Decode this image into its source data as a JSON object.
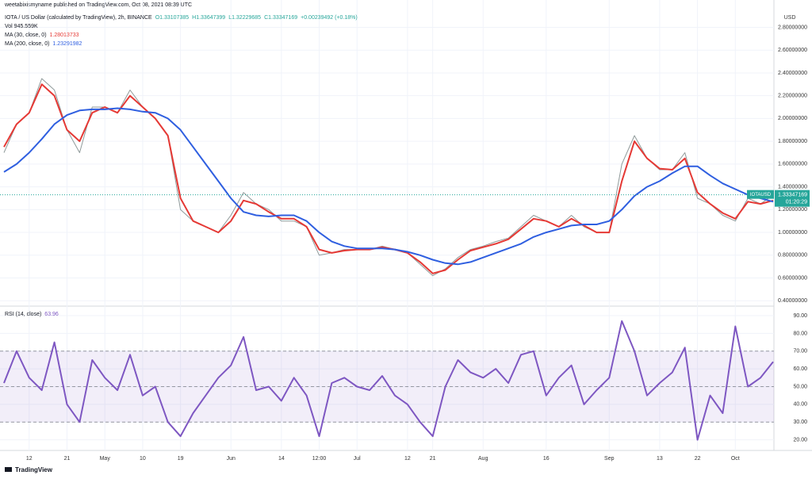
{
  "published": "weetabixismyname published on TradingView.com, Oct 08, 2021 08:39 UTC",
  "branding": "TradingView",
  "chart_data": [
    {
      "type": "line",
      "title": "IOTA / US Dollar (calculated by TradingView), 2h, BINANCE",
      "quote": [
        "O1.33107385",
        "H1.33647399",
        "L1.32229685",
        "C1.33347169",
        "+0.00239492 (+0.18%)"
      ],
      "indicators": [
        "Vol 945.559K"
      ],
      "y_unit": "USD",
      "last_value_label": "1.33347169",
      "countdown": "01:20:29",
      "categories": [
        null,
        null,
        "12",
        null,
        null,
        "21",
        null,
        null,
        "May",
        null,
        null,
        "10",
        null,
        null,
        "19",
        null,
        null,
        null,
        "Jun",
        null,
        null,
        null,
        "14",
        null,
        null,
        "12:00",
        null,
        null,
        "Jul",
        null,
        null,
        null,
        "12",
        null,
        "21",
        null,
        null,
        null,
        "Aug",
        null,
        null,
        null,
        null,
        "16",
        null,
        null,
        null,
        null,
        "Sep",
        null,
        null,
        null,
        "13",
        null,
        null,
        "22",
        null,
        null,
        "Oct",
        null,
        null,
        null
      ],
      "series": [
        {
          "name": "IOTAUSD",
          "color": "#26a69a",
          "line_color": "#8f9a9a",
          "legend": false,
          "values": [
            1.7,
            1.95,
            2.05,
            2.35,
            2.25,
            1.9,
            1.7,
            2.1,
            2.1,
            2.05,
            2.25,
            2.1,
            2.0,
            1.85,
            1.2,
            1.1,
            1.05,
            1.0,
            1.15,
            1.35,
            1.25,
            1.2,
            1.1,
            1.1,
            1.05,
            0.8,
            0.82,
            0.85,
            0.85,
            0.85,
            0.88,
            0.85,
            0.82,
            0.72,
            0.62,
            0.68,
            0.78,
            0.85,
            0.88,
            0.92,
            0.95,
            1.05,
            1.15,
            1.1,
            1.05,
            1.15,
            1.05,
            1.0,
            1.0,
            1.6,
            1.85,
            1.65,
            1.55,
            1.55,
            1.7,
            1.3,
            1.25,
            1.15,
            1.1,
            1.3,
            1.25,
            1.33
          ]
        },
        {
          "name": "MA (30, close, 0)",
          "last_label": "1.28013733",
          "color": "#e53935",
          "legend": true,
          "values": [
            1.75,
            1.95,
            2.05,
            2.3,
            2.2,
            1.9,
            1.8,
            2.05,
            2.1,
            2.05,
            2.2,
            2.1,
            2.0,
            1.85,
            1.3,
            1.1,
            1.05,
            1.0,
            1.1,
            1.28,
            1.25,
            1.18,
            1.12,
            1.12,
            1.05,
            0.85,
            0.82,
            0.84,
            0.85,
            0.85,
            0.87,
            0.85,
            0.82,
            0.74,
            0.64,
            0.67,
            0.76,
            0.84,
            0.87,
            0.9,
            0.94,
            1.03,
            1.12,
            1.1,
            1.05,
            1.12,
            1.06,
            1.0,
            1.0,
            1.45,
            1.8,
            1.65,
            1.56,
            1.55,
            1.65,
            1.35,
            1.25,
            1.17,
            1.12,
            1.27,
            1.25,
            1.28
          ]
        },
        {
          "name": "MA (200, close, 0)",
          "last_label": "1.23291982",
          "color": "#2f5fe0",
          "legend": true,
          "values": [
            1.53,
            1.6,
            1.7,
            1.82,
            1.95,
            2.03,
            2.07,
            2.08,
            2.08,
            2.09,
            2.08,
            2.06,
            2.05,
            2.0,
            1.9,
            1.75,
            1.6,
            1.45,
            1.3,
            1.18,
            1.15,
            1.14,
            1.15,
            1.15,
            1.1,
            1.0,
            0.92,
            0.88,
            0.86,
            0.86,
            0.86,
            0.85,
            0.83,
            0.8,
            0.76,
            0.73,
            0.72,
            0.74,
            0.78,
            0.82,
            0.86,
            0.9,
            0.96,
            1.0,
            1.03,
            1.06,
            1.07,
            1.07,
            1.1,
            1.2,
            1.32,
            1.4,
            1.45,
            1.52,
            1.58,
            1.58,
            1.5,
            1.43,
            1.38,
            1.33,
            1.3,
            1.27
          ]
        }
      ],
      "ylim": [
        0.36,
        3.04
      ],
      "yticks": [
        {
          "value": 0.4,
          "label": "0.40000000"
        },
        {
          "value": 0.6,
          "label": "0.60000000"
        },
        {
          "value": 0.8,
          "label": "0.80000000"
        },
        {
          "value": 1.0,
          "label": "1.00000000"
        },
        {
          "value": 1.2,
          "label": "1.20000000"
        },
        {
          "value": 1.4,
          "label": "1.40000000"
        },
        {
          "value": 1.6,
          "label": "1.60000000"
        },
        {
          "value": 1.8,
          "label": "1.80000000"
        },
        {
          "value": 2.0,
          "label": "2.00000000"
        },
        {
          "value": 2.2,
          "label": "2.20000000"
        },
        {
          "value": 2.4,
          "label": "2.40000000"
        },
        {
          "value": 2.6,
          "label": "2.60000000"
        },
        {
          "value": 2.8,
          "label": "2.80000000"
        }
      ],
      "grid": true
    },
    {
      "type": "line",
      "series": [
        {
          "name": "RSI (14, close)",
          "last_label": "63.96",
          "color": "#7e57c2",
          "legend": true,
          "values": [
            52,
            70,
            55,
            48,
            75,
            40,
            30,
            65,
            55,
            48,
            68,
            45,
            50,
            30,
            22,
            35,
            45,
            55,
            62,
            78,
            48,
            50,
            42,
            55,
            45,
            22,
            52,
            55,
            50,
            48,
            56,
            45,
            40,
            30,
            22,
            50,
            65,
            58,
            55,
            60,
            52,
            68,
            70,
            45,
            55,
            62,
            40,
            48,
            55,
            87,
            70,
            45,
            52,
            58,
            72,
            20,
            45,
            35,
            84,
            50,
            55,
            64
          ]
        }
      ],
      "levels": [
        70,
        50,
        30
      ],
      "band_color": "#7e57c2",
      "ylim": [
        14,
        94.5
      ],
      "yticks": [
        {
          "value": 20,
          "label": "20.00"
        },
        {
          "value": 30,
          "label": "30.00"
        },
        {
          "value": 40,
          "label": "40.00"
        },
        {
          "value": 50,
          "label": "50.00"
        },
        {
          "value": 60,
          "label": "60.00"
        },
        {
          "value": 70,
          "label": "70.00"
        },
        {
          "value": 80,
          "label": "80.00"
        },
        {
          "value": 90,
          "label": "90.00"
        }
      ],
      "grid": true
    }
  ]
}
